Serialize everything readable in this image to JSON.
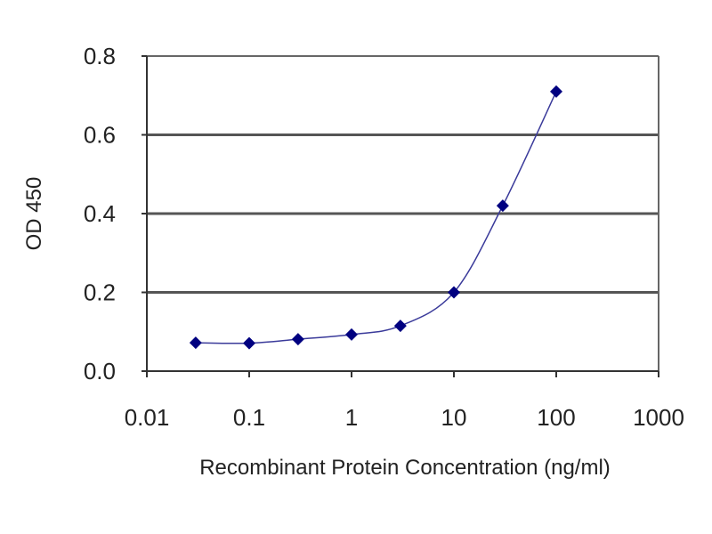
{
  "chart_data": {
    "type": "line",
    "title": "",
    "xlabel": "Recombinant Protein Concentration (ng/ml)",
    "ylabel": "OD 450",
    "xscale": "log",
    "xlim": [
      0.01,
      1000
    ],
    "ylim": [
      0,
      0.8
    ],
    "xticks": [
      0.01,
      0.1,
      1,
      10,
      100,
      1000
    ],
    "xtick_labels": [
      "0.01",
      "0.1",
      "1",
      "10",
      "100",
      "1000"
    ],
    "yticks": [
      0,
      0.2,
      0.4,
      0.6,
      0.8
    ],
    "ytick_labels": [
      "0.0",
      "0.2",
      "0.4",
      "0.6",
      "0.8"
    ],
    "grid": "horizontal",
    "legend": "none",
    "series": [
      {
        "name": "OD 450",
        "color": "#000080",
        "line_color": "#3a3a9a",
        "marker": "diamond",
        "x": [
          0.03,
          0.1,
          0.3,
          1,
          3,
          10,
          30,
          100
        ],
        "y": [
          0.072,
          0.071,
          0.081,
          0.093,
          0.115,
          0.2,
          0.42,
          0.71
        ]
      }
    ]
  }
}
